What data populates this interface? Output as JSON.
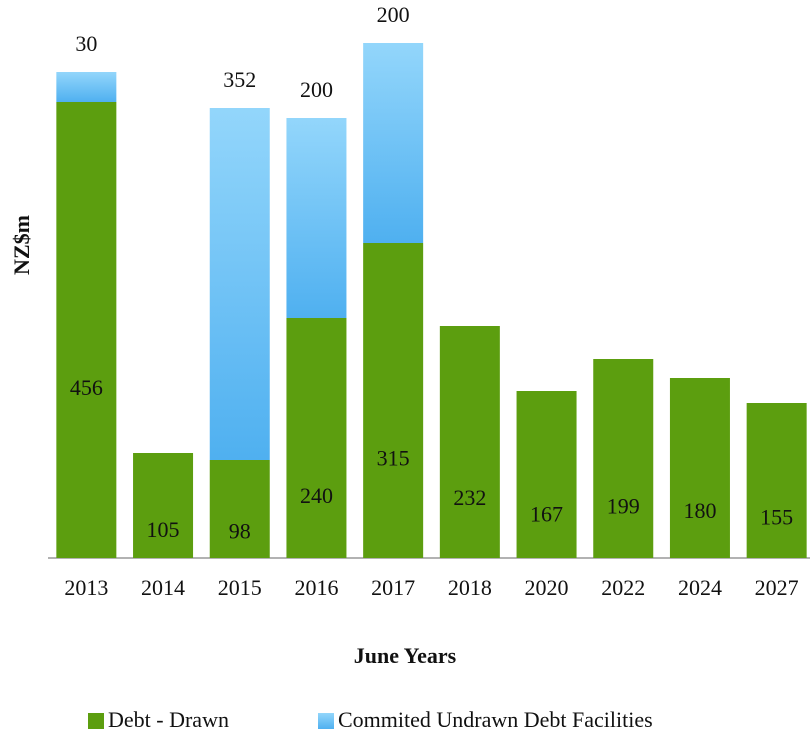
{
  "chart_data": {
    "type": "stacked_bar",
    "x_label": "June Years",
    "y_label": "NZ$m",
    "categories": [
      "2013",
      "2014",
      "2015",
      "2016",
      "2017",
      "2018",
      "2020",
      "2022",
      "2024",
      "2027"
    ],
    "series": [
      {
        "name": "Debt - Drawn",
        "color": "#5c9e0f",
        "values": [
          456,
          105,
          98,
          240,
          315,
          232,
          167,
          199,
          180,
          155
        ]
      },
      {
        "name": "Commited Undrawn Debt Facilities",
        "color": "#6cc4f7",
        "values": [
          30,
          null,
          352,
          200,
          200,
          null,
          null,
          null,
          null,
          null
        ]
      }
    ],
    "ylim": [
      0,
      558
    ],
    "legend": "bottom"
  }
}
